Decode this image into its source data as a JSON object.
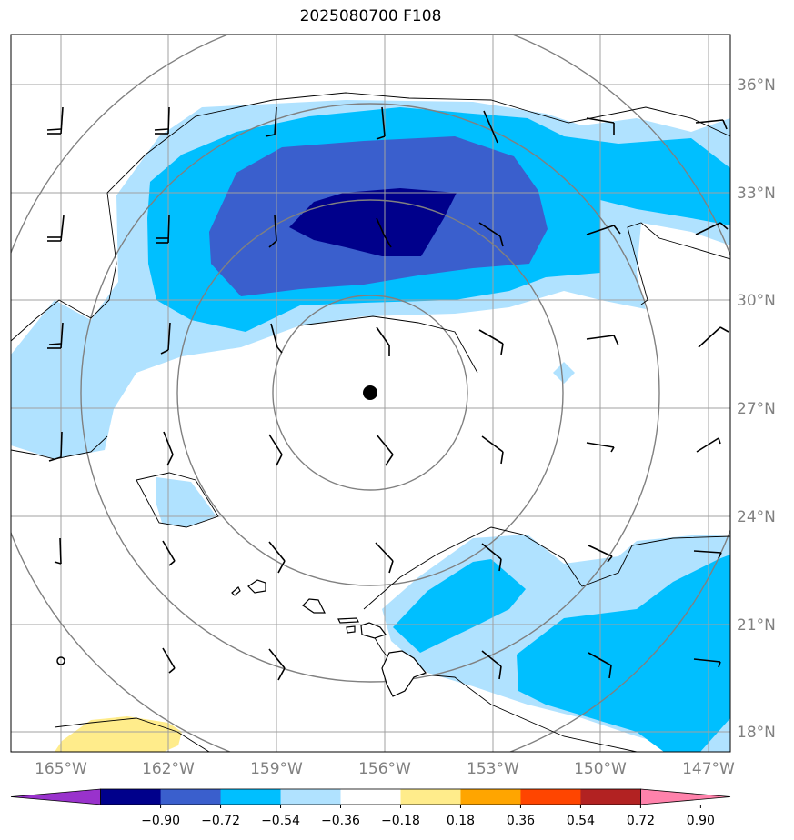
{
  "title": "2025080700 F108",
  "latitude_labels": [
    "36°N",
    "33°N",
    "30°N",
    "27°N",
    "24°N",
    "21°N",
    "18°N"
  ],
  "longitude_labels": [
    "165°W",
    "162°W",
    "159°W",
    "156°W",
    "153°W",
    "150°W",
    "147°W"
  ],
  "colorbar": {
    "ticks": [
      "−0.90",
      "−0.72",
      "−0.54",
      "−0.36",
      "−0.18",
      "0.18",
      "0.36",
      "0.54",
      "0.72",
      "0.90"
    ],
    "colors": [
      "#9932cc",
      "#00008b",
      "#3a5fcd",
      "#00bfff",
      "#b0e2ff",
      "#ffffff",
      "#ffec8b",
      "#ffa500",
      "#ff4500",
      "#b22222",
      "#ff82ab"
    ]
  },
  "colors": {
    "contour_ring": "#808080",
    "coastline": "#000000",
    "gridline": "#a0a0a0"
  },
  "storm_center_marker": "filled-black-dot"
}
